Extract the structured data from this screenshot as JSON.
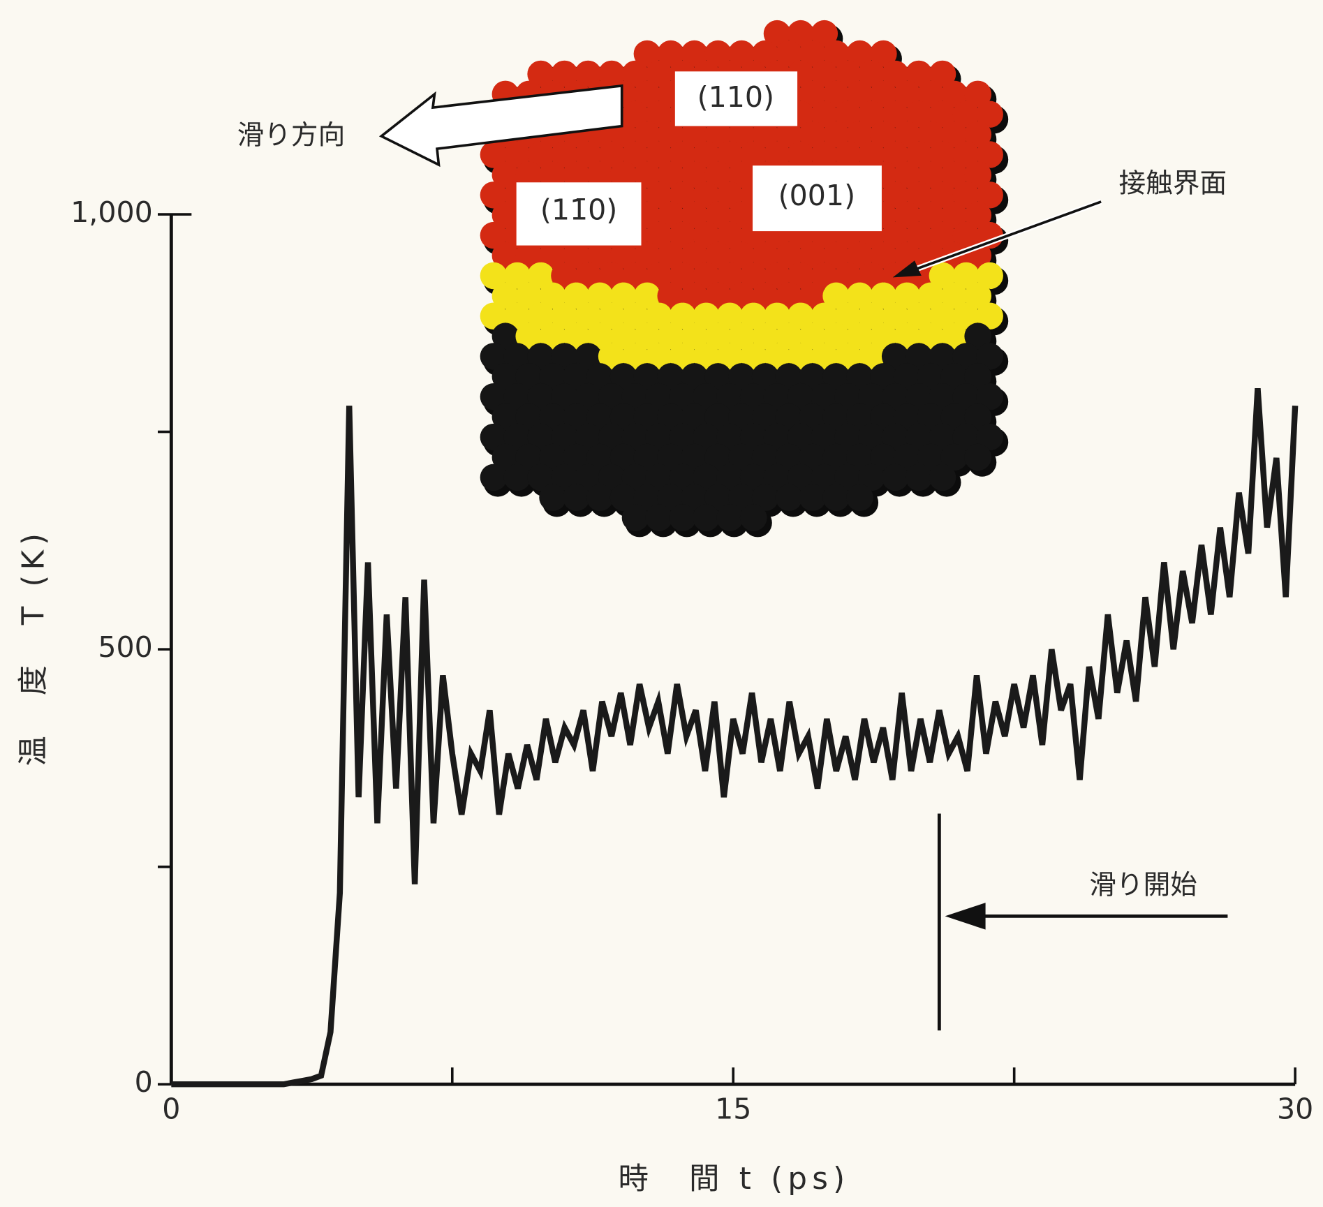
{
  "chart_data": {
    "type": "line",
    "xlabel": "時　間 t (ps)",
    "ylabel": "温　度　T (K)",
    "xlim": [
      0,
      30
    ],
    "ylim": [
      0,
      1000
    ],
    "xticks": [
      0,
      15,
      30
    ],
    "yticks": [
      0,
      500,
      {
        "value": 1000,
        "label": "1,000"
      }
    ],
    "xminor_ticks": [
      7.5,
      22.5
    ],
    "yminor_ticks": [
      250,
      750
    ],
    "series": [
      {
        "color": "#1a1a1a",
        "x": [
          0,
          0.25,
          0.5,
          0.75,
          1,
          1.25,
          1.5,
          1.75,
          2,
          2.25,
          2.5,
          2.75,
          3,
          3.25,
          3.5,
          3.75,
          4,
          4.25,
          4.5,
          4.75,
          5,
          5.25,
          5.5,
          5.75,
          6,
          6.25,
          6.5,
          6.75,
          7,
          7.25,
          7.5,
          7.75,
          8,
          8.25,
          8.5,
          8.75,
          9,
          9.25,
          9.5,
          9.75,
          10,
          10.25,
          10.5,
          10.75,
          11,
          11.25,
          11.5,
          11.75,
          12,
          12.25,
          12.5,
          12.75,
          13,
          13.25,
          13.5,
          13.75,
          14,
          14.25,
          14.5,
          14.75,
          15,
          15.25,
          15.5,
          15.75,
          16,
          16.25,
          16.5,
          16.75,
          17,
          17.25,
          17.5,
          17.75,
          18,
          18.25,
          18.5,
          18.75,
          19,
          19.25,
          19.5,
          19.75,
          20,
          20.25,
          20.5,
          20.75,
          21,
          21.25,
          21.5,
          21.75,
          22,
          22.25,
          22.5,
          22.75,
          23,
          23.25,
          23.5,
          23.75,
          24,
          24.25,
          24.5,
          24.75,
          25,
          25.25,
          25.5,
          25.75,
          26,
          26.25,
          26.5,
          26.75,
          27,
          27.25,
          27.5,
          27.75,
          28,
          28.25,
          28.5,
          28.75,
          29,
          29.25,
          29.5,
          29.75,
          30
        ],
        "values": [
          0,
          0,
          0,
          0,
          0,
          0,
          0,
          0,
          0,
          0,
          0,
          0,
          0,
          2,
          4,
          6,
          10,
          60,
          220,
          780,
          330,
          600,
          300,
          540,
          340,
          560,
          230,
          580,
          300,
          470,
          380,
          310,
          380,
          360,
          430,
          310,
          380,
          340,
          390,
          350,
          420,
          370,
          410,
          390,
          430,
          360,
          440,
          400,
          450,
          390,
          460,
          410,
          440,
          380,
          460,
          400,
          430,
          360,
          440,
          330,
          420,
          380,
          450,
          370,
          420,
          360,
          440,
          380,
          400,
          340,
          420,
          360,
          400,
          350,
          420,
          370,
          410,
          350,
          450,
          360,
          420,
          370,
          430,
          380,
          400,
          360,
          470,
          380,
          440,
          400,
          460,
          410,
          470,
          390,
          500,
          430,
          460,
          350,
          480,
          420,
          540,
          450,
          510,
          440,
          560,
          480,
          600,
          500,
          590,
          530,
          620,
          540,
          640,
          560,
          680,
          610,
          800,
          640,
          720,
          560,
          780
        ]
      }
    ],
    "annotations": [
      {
        "text": "滑り方向"
      },
      {
        "text": "(110)"
      },
      {
        "text": "(11̄0)"
      },
      {
        "text": "(001)"
      },
      {
        "text": "接触界面"
      },
      {
        "text": "滑り開始",
        "x": 20.5
      }
    ]
  }
}
